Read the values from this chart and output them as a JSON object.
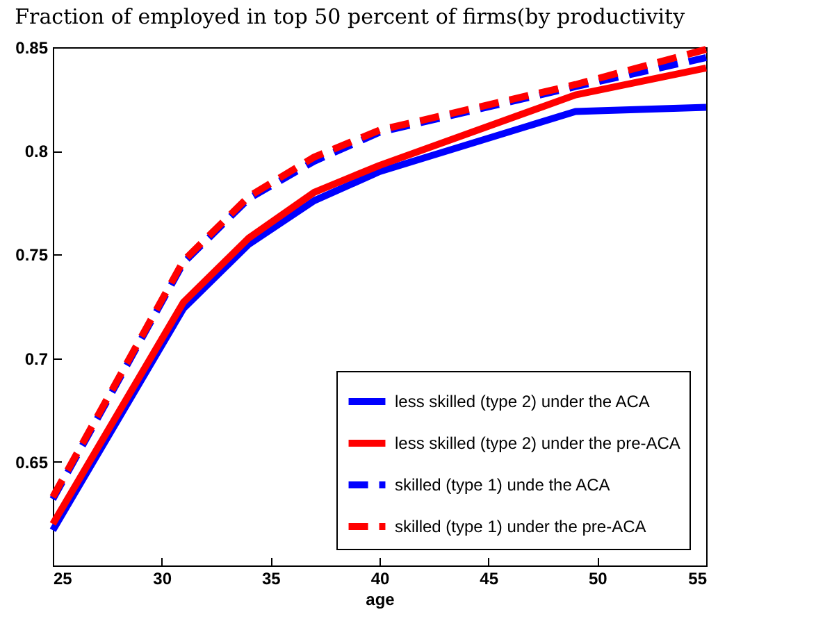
{
  "chart_data": {
    "type": "line",
    "title": "Fraction of employed in top 50 percent of firms(by productivity",
    "xlabel": "age",
    "x": [
      25,
      31,
      34,
      37,
      40,
      49,
      55
    ],
    "series": [
      {
        "name": "less skilled (type 2) under the ACA",
        "color": "#0000ff",
        "line_style": "solid",
        "values": [
          0.617,
          0.724,
          0.755,
          0.776,
          0.79,
          0.819,
          0.821
        ]
      },
      {
        "name": "less skilled (type 2) under the pre-ACA",
        "color": "#ff0000",
        "line_style": "solid",
        "values": [
          0.62,
          0.727,
          0.758,
          0.78,
          0.793,
          0.827,
          0.84
        ]
      },
      {
        "name": "skilled (type 1) unde the ACA",
        "color": "#0000ff",
        "line_style": "dashed",
        "values": [
          0.632,
          0.746,
          0.777,
          0.795,
          0.809,
          0.831,
          0.845
        ]
      },
      {
        "name": "skilled (type 1) under the pre-ACA",
        "color": "#ff0000",
        "line_style": "dashed",
        "values": [
          0.633,
          0.747,
          0.778,
          0.797,
          0.81,
          0.832,
          0.849
        ]
      }
    ],
    "xlim": [
      25,
      55
    ],
    "xticks": [
      25,
      30,
      35,
      40,
      45,
      50,
      55
    ],
    "ylim": [
      0.6,
      0.85
    ],
    "yticks": [
      0.65,
      0.7,
      0.75,
      0.8,
      0.85
    ],
    "grid": false,
    "legend": "bottom right",
    "marker": "none"
  }
}
